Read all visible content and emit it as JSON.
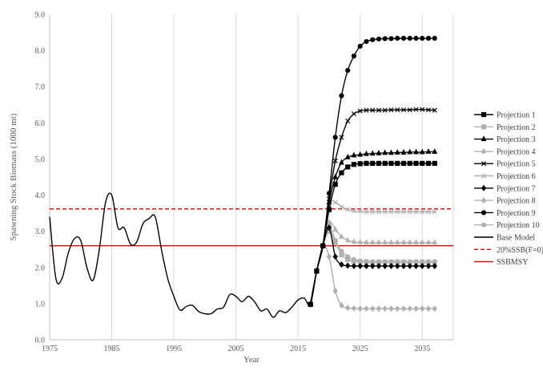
{
  "chart_data": {
    "type": "line",
    "title": "",
    "xlabel": "Year",
    "ylabel": "Spawning Stock Biomass (1000 mt)",
    "xlim": [
      1975,
      2040
    ],
    "ylim": [
      0,
      9
    ],
    "x_ticks": [
      1975,
      1985,
      1995,
      2005,
      2015,
      2025,
      2035
    ],
    "y_ticks": [
      "0.0",
      "1.0",
      "2.0",
      "3.0",
      "4.0",
      "5.0",
      "6.0",
      "7.0",
      "8.0",
      "9.0"
    ],
    "grid": "vertical",
    "legend_position": "right",
    "proj_years": [
      2017,
      2018,
      2019,
      2020,
      2021,
      2022,
      2023,
      2024,
      2025,
      2026,
      2027,
      2028,
      2029,
      2030,
      2031,
      2032,
      2033,
      2034,
      2035,
      2036,
      2037
    ],
    "series": [
      {
        "name": "Projection 1",
        "color": "#000000",
        "dash": "",
        "marker": "square",
        "values": [
          0.98,
          1.9,
          2.6,
          3.6,
          4.3,
          4.62,
          4.78,
          4.85,
          4.87,
          4.88,
          4.88,
          4.88,
          4.88,
          4.88,
          4.88,
          4.88,
          4.88,
          4.88,
          4.88,
          4.88,
          4.88
        ]
      },
      {
        "name": "Projection 2",
        "color": "#b0b0b0",
        "dash": "",
        "marker": "square",
        "values": [
          0.98,
          1.9,
          2.6,
          3.0,
          2.7,
          2.35,
          2.22,
          2.18,
          2.16,
          2.15,
          2.15,
          2.15,
          2.15,
          2.15,
          2.15,
          2.15,
          2.15,
          2.15,
          2.15,
          2.15,
          2.15
        ]
      },
      {
        "name": "Projection 3",
        "color": "#000000",
        "dash": "",
        "marker": "triangle",
        "values": [
          0.98,
          1.9,
          2.6,
          3.8,
          4.5,
          4.9,
          5.05,
          5.1,
          5.12,
          5.14,
          5.15,
          5.16,
          5.17,
          5.17,
          5.18,
          5.18,
          5.19,
          5.19,
          5.19,
          5.2,
          5.2
        ]
      },
      {
        "name": "Projection 4",
        "color": "#b0b0b0",
        "dash": "",
        "marker": "triangle",
        "values": [
          0.98,
          1.9,
          2.6,
          3.25,
          3.05,
          2.85,
          2.75,
          2.71,
          2.7,
          2.69,
          2.69,
          2.69,
          2.69,
          2.69,
          2.69,
          2.69,
          2.69,
          2.69,
          2.69,
          2.69,
          2.69
        ]
      },
      {
        "name": "Projection 5",
        "color": "#000000",
        "dash": "",
        "marker": "x",
        "values": [
          0.98,
          1.9,
          2.6,
          3.9,
          4.95,
          5.6,
          6.05,
          6.25,
          6.33,
          6.35,
          6.35,
          6.35,
          6.35,
          6.36,
          6.36,
          6.36,
          6.36,
          6.37,
          6.37,
          6.36,
          6.35
        ]
      },
      {
        "name": "Projection 6",
        "color": "#b0b0b0",
        "dash": "",
        "marker": "x",
        "values": [
          0.98,
          1.9,
          2.6,
          3.75,
          3.8,
          3.68,
          3.6,
          3.56,
          3.55,
          3.54,
          3.54,
          3.54,
          3.54,
          3.54,
          3.54,
          3.54,
          3.54,
          3.54,
          3.54,
          3.54,
          3.54
        ]
      },
      {
        "name": "Projection 7",
        "color": "#000000",
        "dash": "",
        "marker": "diamond",
        "values": [
          0.98,
          1.9,
          2.6,
          3.1,
          2.3,
          2.08,
          2.05,
          2.04,
          2.04,
          2.04,
          2.04,
          2.04,
          2.04,
          2.04,
          2.04,
          2.04,
          2.04,
          2.04,
          2.04,
          2.04,
          2.04
        ]
      },
      {
        "name": "Projection 8",
        "color": "#b0b0b0",
        "dash": "",
        "marker": "diamond",
        "values": [
          0.98,
          1.9,
          2.6,
          2.3,
          1.35,
          0.95,
          0.88,
          0.87,
          0.86,
          0.86,
          0.86,
          0.86,
          0.86,
          0.86,
          0.86,
          0.86,
          0.86,
          0.86,
          0.86,
          0.86,
          0.86
        ]
      },
      {
        "name": "Projection 9",
        "color": "#000000",
        "dash": "",
        "marker": "circle",
        "values": [
          0.98,
          1.9,
          2.6,
          4.05,
          5.6,
          6.75,
          7.45,
          7.85,
          8.12,
          8.25,
          8.3,
          8.32,
          8.33,
          8.33,
          8.34,
          8.34,
          8.34,
          8.34,
          8.34,
          8.34,
          8.34
        ]
      },
      {
        "name": "Projection 10",
        "color": "#b0b0b0",
        "dash": "",
        "marker": "circle",
        "values": [
          0.98,
          1.9,
          2.6,
          3.15,
          2.75,
          2.45,
          2.3,
          2.22,
          2.18,
          2.17,
          2.16,
          2.16,
          2.16,
          2.16,
          2.16,
          2.16,
          2.16,
          2.16,
          2.16,
          2.16,
          2.16
        ]
      },
      {
        "name": "Base Model",
        "color": "#000000",
        "dash": "",
        "marker": "none",
        "x": [
          1975,
          1976,
          1977,
          1978,
          1979,
          1980,
          1981,
          1982,
          1983,
          1984,
          1985,
          1986,
          1987,
          1988,
          1989,
          1990,
          1991,
          1992,
          1993,
          1994,
          1995,
          1996,
          1997,
          1998,
          1999,
          2000,
          2001,
          2002,
          2003,
          2004,
          2005,
          2006,
          2007,
          2008,
          2009,
          2010,
          2011,
          2012,
          2013,
          2014,
          2015,
          2016,
          2017,
          2018,
          2019
        ],
        "values": [
          3.4,
          1.7,
          1.7,
          2.4,
          2.8,
          2.75,
          2.0,
          1.65,
          2.5,
          3.8,
          4.0,
          3.1,
          3.1,
          2.65,
          2.7,
          3.2,
          3.35,
          3.4,
          2.5,
          1.7,
          1.2,
          0.82,
          0.92,
          0.95,
          0.78,
          0.72,
          0.72,
          0.85,
          0.9,
          1.25,
          1.2,
          1.05,
          1.2,
          1.05,
          0.8,
          0.85,
          0.62,
          0.8,
          0.75,
          0.9,
          1.1,
          1.15,
          0.98,
          1.9,
          2.6
        ]
      },
      {
        "name": "20%SSB(F=0)",
        "color": "#e00000",
        "dash": "5,3",
        "marker": "none",
        "hline": 3.62
      },
      {
        "name": "SSBMSY",
        "color": "#e00000",
        "dash": "",
        "marker": "none",
        "hline": 2.6
      }
    ]
  }
}
